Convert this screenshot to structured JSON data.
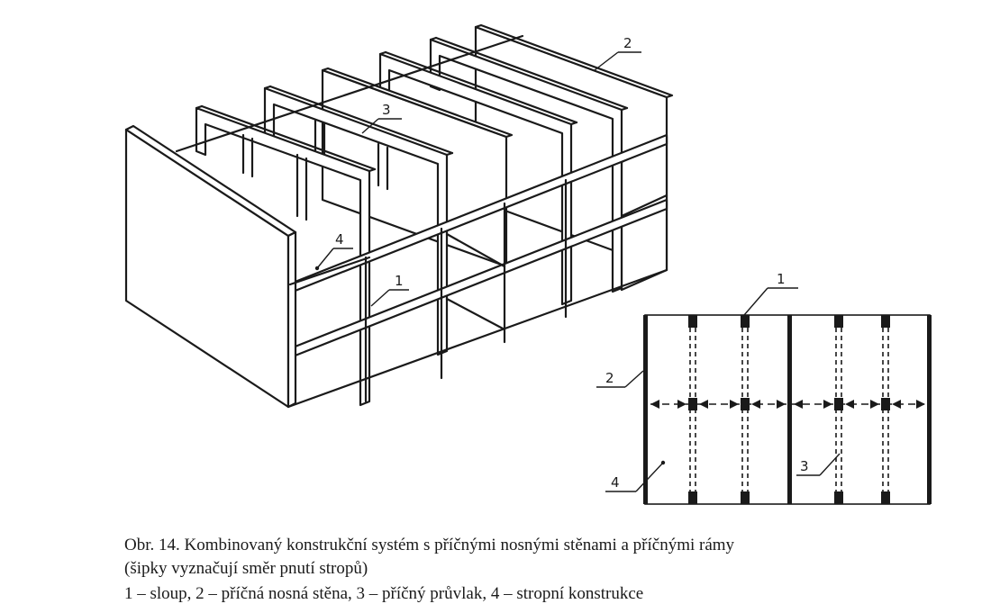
{
  "labels": {
    "iso": [
      "1",
      "2",
      "3",
      "4"
    ],
    "plan": [
      "1",
      "2",
      "3",
      "4"
    ]
  },
  "caption": {
    "line1": "Obr. 14.  Kombinovaný konstrukční systém s příčnými nosnými stěnami a příčnými rámy",
    "line2": "(šipky  vyznačují směr pnutí stropů)",
    "line3": "1 – sloup, 2 – příčná nosná stěna, 3 – příčný průvlak, 4 – stropní konstrukce"
  }
}
